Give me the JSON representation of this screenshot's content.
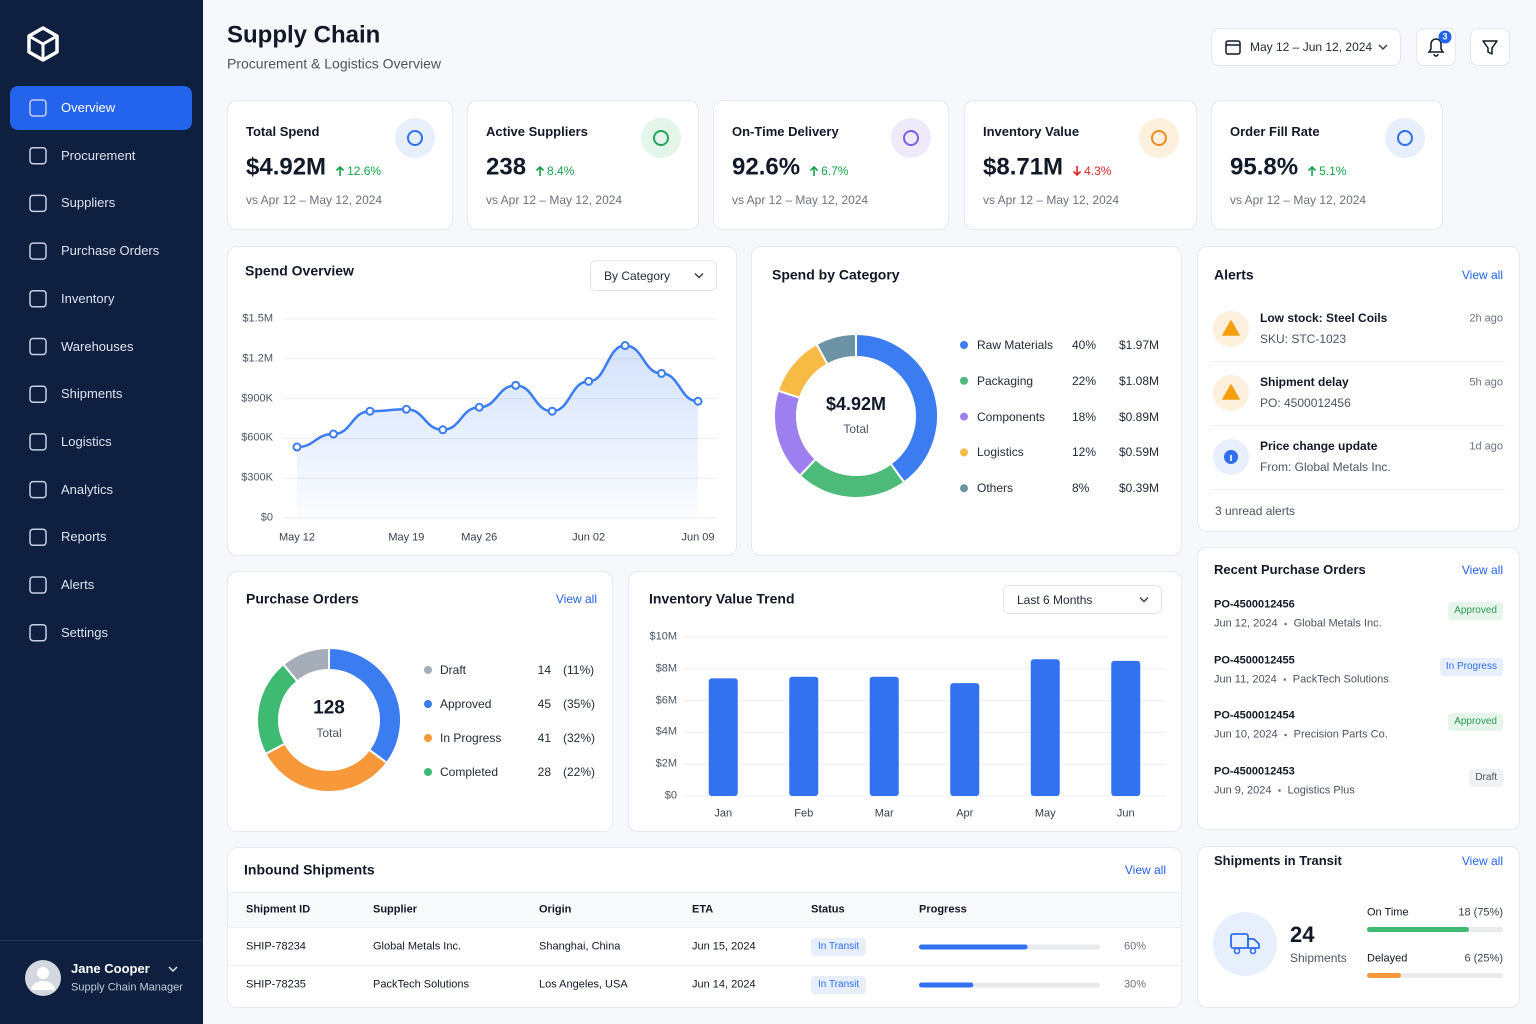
{
  "sidebar": {
    "nav": [
      "Overview",
      "Procurement",
      "Suppliers",
      "Purchase Orders",
      "Inventory",
      "Warehouses",
      "Shipments",
      "Logistics",
      "Analytics",
      "Reports",
      "Alerts",
      "Settings"
    ],
    "active": 0,
    "user": {
      "name": "Jane Cooper",
      "role": "Supply Chain Manager"
    }
  },
  "header": {
    "title": "Supply Chain",
    "subtitle": "Procurement & Logistics Overview",
    "date_range": "May 12 – Jun 12, 2024",
    "notifications": "3"
  },
  "kpis": [
    {
      "label": "Total Spend",
      "value": "$4.92M",
      "change": "12.6%",
      "trend": "up",
      "trend_color": "#16a34a",
      "compare": "vs Apr 12 – May 12, 2024",
      "accent": "#2f6ff0",
      "accent_bg": "#e7eefc"
    },
    {
      "label": "Active Suppliers",
      "value": "238",
      "change": "8.4%",
      "trend": "up",
      "trend_color": "#16a34a",
      "compare": "vs Apr 12 – May 12, 2024",
      "accent": "#22a55a",
      "accent_bg": "#e4f5ea"
    },
    {
      "label": "On-Time Delivery",
      "value": "92.6%",
      "change": "6.7%",
      "trend": "up",
      "trend_color": "#16a34a",
      "compare": "vs Apr 12 – May 12, 2024",
      "accent": "#7c5ce6",
      "accent_bg": "#eeeafc"
    },
    {
      "label": "Inventory Value",
      "value": "$8.71M",
      "change": "4.3%",
      "trend": "down",
      "trend_color": "#dc2626",
      "compare": "vs Apr 12 – May 12, 2024",
      "accent": "#f08c1c",
      "accent_bg": "#fdf0dd"
    },
    {
      "label": "Order Fill Rate",
      "value": "95.8%",
      "change": "5.1%",
      "trend": "up",
      "trend_color": "#16a34a",
      "compare": "vs Apr 12 – May 12, 2024",
      "accent": "#2f6ff0",
      "accent_bg": "#e7eefc"
    }
  ],
  "chart_data": [
    {
      "type": "line",
      "title": "Spend Overview",
      "control": "By Category",
      "categories": [
        "May 12",
        null,
        null,
        "May 19",
        null,
        "May 26",
        null,
        null,
        "Jun 02",
        null,
        null,
        "Jun 09"
      ],
      "values": [
        535000,
        633000,
        805000,
        820000,
        665000,
        835000,
        1000000,
        805000,
        1030000,
        1300000,
        1090000,
        880000
      ],
      "color": "#3b7cf0",
      "ylim": [
        0,
        1500000
      ],
      "yticks": [
        {
          "value": 0,
          "label": "$0"
        },
        {
          "value": 300000,
          "label": "$300K"
        },
        {
          "value": 600000,
          "label": "$600K"
        },
        {
          "value": 900000,
          "label": "$900K"
        },
        {
          "value": 1200000,
          "label": "$1.2M"
        },
        {
          "value": 1500000,
          "label": "$1.5M"
        }
      ],
      "grid": true
    },
    {
      "type": "donut",
      "title": "Spend by Category",
      "center_label": "$4.92M",
      "center_sublabel": "Total",
      "categories": [
        "Raw Materials",
        "Packaging",
        "Components",
        "Logistics",
        "Others"
      ],
      "values": [
        40,
        22,
        18,
        12,
        8
      ],
      "value_labels": [
        "40%",
        "22%",
        "18%",
        "12%",
        "8%"
      ],
      "amounts": [
        "$1.97M",
        "$1.08M",
        "$0.89M",
        "$0.59M",
        "$0.39M"
      ],
      "colors": [
        "#3b7cf0",
        "#4cbb7a",
        "#9d7ff0",
        "#f7bb45",
        "#6b93a5"
      ]
    },
    {
      "type": "donut",
      "title": "Purchase Orders",
      "link": "View all",
      "center_label": "128",
      "center_sublabel": "Total",
      "categories": [
        "Draft",
        "Approved",
        "In Progress",
        "Completed"
      ],
      "values": [
        14,
        45,
        41,
        28
      ],
      "percent_labels": [
        "(11%)",
        "(35%)",
        "(32%)",
        "(22%)"
      ],
      "colors": [
        "#a5adb8",
        "#3b7cf0",
        "#f7993a",
        "#3fba72"
      ],
      "start": "end-at-top"
    },
    {
      "type": "bar",
      "title": "Inventory Value Trend",
      "control": "Last 6 Months",
      "categories": [
        "Jan",
        "Feb",
        "Mar",
        "Apr",
        "May",
        "Jun"
      ],
      "values": [
        7.4,
        7.5,
        7.5,
        7.1,
        8.6,
        8.5
      ],
      "color": "#3272f0",
      "ylim": [
        0,
        10
      ],
      "yticks": [
        {
          "value": 0,
          "label": "$0"
        },
        {
          "value": 2,
          "label": "$2M"
        },
        {
          "value": 4,
          "label": "$4M"
        },
        {
          "value": 6,
          "label": "$6M"
        },
        {
          "value": 8,
          "label": "$8M"
        },
        {
          "value": 10,
          "label": "$10M"
        }
      ],
      "grid": true
    }
  ],
  "alerts": {
    "title": "Alerts",
    "link": "View all",
    "items": [
      {
        "title": "Low stock: Steel Coils",
        "detail": "SKU: STC-1023",
        "time": "2h ago",
        "kind": "warning",
        "icon_color": "#f59e0b",
        "icon_bg": "#fdf0dd"
      },
      {
        "title": "Shipment delay",
        "detail": "PO: 4500012456",
        "time": "5h ago",
        "kind": "warning",
        "icon_color": "#f59e0b",
        "icon_bg": "#fdf0dd"
      },
      {
        "title": "Price change update",
        "detail": "From: Global Metals Inc.",
        "time": "1d ago",
        "kind": "info",
        "icon_color": "#2f6ff0",
        "icon_bg": "#e7eefc"
      }
    ],
    "footer": "3 unread alerts"
  },
  "recent_orders": {
    "title": "Recent Purchase Orders",
    "link": "View all",
    "items": [
      {
        "id": "PO-4500012456",
        "date": "Jun 12, 2024",
        "vendor": "Global Metals Inc.",
        "status": "Approved",
        "status_color": "#2e9a53",
        "status_bg": "#e5f5ea"
      },
      {
        "id": "PO-4500012455",
        "date": "Jun 11, 2024",
        "vendor": "PackTech Solutions",
        "status": "In Progress",
        "status_color": "#2f6ff0",
        "status_bg": "#e7eefc"
      },
      {
        "id": "PO-4500012454",
        "date": "Jun 10, 2024",
        "vendor": "Precision Parts Co.",
        "status": "Approved",
        "status_color": "#2e9a53",
        "status_bg": "#e5f5ea"
      },
      {
        "id": "PO-4500012453",
        "date": "Jun 9, 2024",
        "vendor": "Logistics Plus",
        "status": "Draft",
        "status_color": "#4b5563",
        "status_bg": "#f0f1f4"
      }
    ]
  },
  "shipments_in_transit": {
    "title": "Shipments in Transit",
    "link": "View all",
    "count": 24,
    "count_label": "Shipments",
    "rows": [
      {
        "label": "On Time",
        "value": 75,
        "value_label": "18 (75%)",
        "color": "#3fba72"
      },
      {
        "label": "Delayed",
        "value": 25,
        "value_label": "6 (25%)",
        "color": "#f7993a"
      }
    ]
  },
  "inbound_shipments": {
    "title": "Inbound Shipments",
    "link": "View all",
    "columns": [
      "Shipment ID",
      "Supplier",
      "Origin",
      "ETA",
      "Status",
      "Progress"
    ],
    "rows": [
      {
        "cells": [
          "SHIP-78234",
          "Global Metals Inc.",
          "Shanghai, China",
          "Jun 15, 2024"
        ],
        "status": "In Transit",
        "progress": 60,
        "progress_label": "60%"
      },
      {
        "cells": [
          "SHIP-78235",
          "PackTech Solutions",
          "Los Angeles, USA",
          "Jun 14, 2024"
        ],
        "status": "In Transit",
        "progress": 30,
        "progress_label": "30%"
      }
    ],
    "status_color": "#2f6ff0",
    "status_bg": "#e7eefc",
    "progress_color": "#3272f0"
  }
}
